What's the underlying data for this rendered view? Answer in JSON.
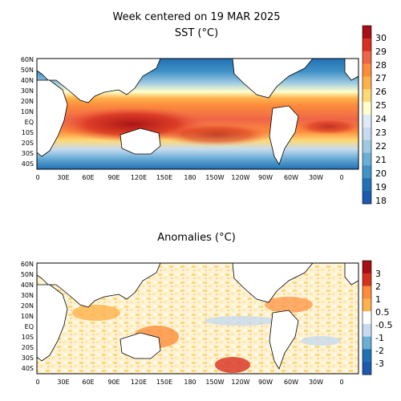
{
  "title": "Week centered on 19 MAR 2025",
  "panels": [
    {
      "id": "sst",
      "title": "SST (°C)",
      "lat_labels": [
        "60N",
        "50N",
        "40N",
        "30N",
        "20N",
        "10N",
        "EQ",
        "10S",
        "20S",
        "30S",
        "40S"
      ],
      "lon_labels": [
        "0",
        "30E",
        "60E",
        "90E",
        "120E",
        "150E",
        "180",
        "150W",
        "120W",
        "90W",
        "60W",
        "30W",
        "0"
      ],
      "colorbar": {
        "labels": [
          "30",
          "29",
          "28",
          "27",
          "26",
          "25",
          "24",
          "23",
          "22",
          "21",
          "20",
          "19",
          "18"
        ],
        "colors": [
          "#a50f15",
          "#d7301f",
          "#ef6548",
          "#fd8d3c",
          "#feb24c",
          "#fed976",
          "#ffffcc",
          "#deebf7",
          "#c6dbef",
          "#9ecae1",
          "#6baed6",
          "#4292c6",
          "#2171b5",
          "#1c5ab0"
        ]
      }
    },
    {
      "id": "anom",
      "title": "Anomalies (°C)",
      "lat_labels": [
        "60N",
        "50N",
        "40N",
        "30N",
        "20N",
        "10N",
        "EQ",
        "10S",
        "20S",
        "30S",
        "40S"
      ],
      "lon_labels": [
        "0",
        "30E",
        "60E",
        "90E",
        "120E",
        "150E",
        "180",
        "150W",
        "120W",
        "90W",
        "60W",
        "30W",
        "0"
      ],
      "colorbar": {
        "labels": [
          "3",
          "2",
          "1",
          "0.5",
          "-0.5",
          "-1",
          "-2",
          "-3"
        ],
        "colors": [
          "#a50f15",
          "#d7301f",
          "#fd8d3c",
          "#feb24c",
          "#ffffff",
          "#c6dbef",
          "#6baed6",
          "#2171b5",
          "#1c5ab0"
        ]
      }
    }
  ]
}
